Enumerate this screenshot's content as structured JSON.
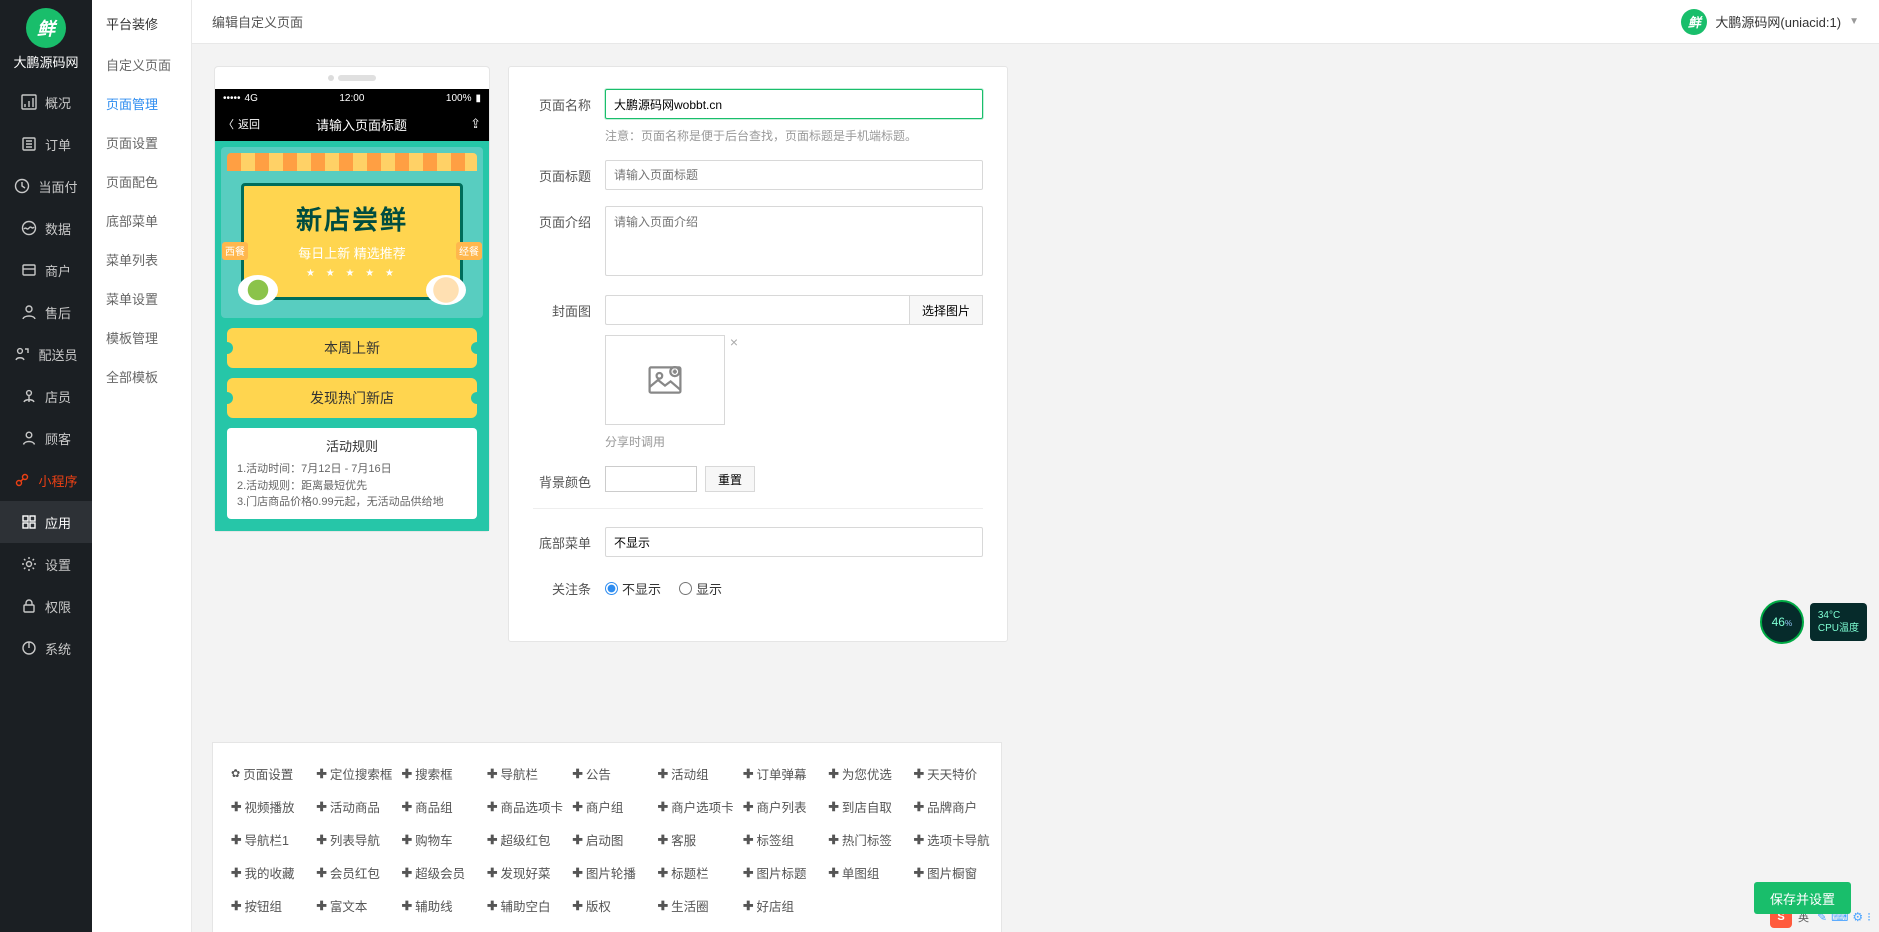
{
  "brand": {
    "name": "大鹏源码网",
    "logo_glyph": "鲜"
  },
  "sidebar_main": [
    {
      "key": "overview",
      "label": "概况",
      "icon": "dash"
    },
    {
      "key": "order",
      "label": "订单",
      "icon": "list"
    },
    {
      "key": "pay",
      "label": "当面付",
      "icon": "clock"
    },
    {
      "key": "data",
      "label": "数据",
      "icon": "wave"
    },
    {
      "key": "merchant",
      "label": "商户",
      "icon": "block"
    },
    {
      "key": "after",
      "label": "售后",
      "icon": "person"
    },
    {
      "key": "delivery",
      "label": "配送员",
      "icon": "rider"
    },
    {
      "key": "staff",
      "label": "店员",
      "icon": "staff"
    },
    {
      "key": "customer",
      "label": "顾客",
      "icon": "cust"
    },
    {
      "key": "miniapp",
      "label": "小程序",
      "icon": "link",
      "active": true
    },
    {
      "key": "apps",
      "label": "应用",
      "icon": "grid",
      "app": true
    },
    {
      "key": "settings",
      "label": "设置",
      "icon": "gear"
    },
    {
      "key": "auth",
      "label": "权限",
      "icon": "lock"
    },
    {
      "key": "system",
      "label": "系统",
      "icon": "power"
    }
  ],
  "sidebar_sub": {
    "title": "平台装修",
    "items": [
      {
        "label": "自定义页面"
      },
      {
        "label": "页面管理",
        "active": true
      },
      {
        "label": "页面设置"
      },
      {
        "label": "页面配色"
      },
      {
        "label": "底部菜单"
      },
      {
        "label": "菜单列表"
      },
      {
        "label": "菜单设置"
      },
      {
        "label": "模板管理"
      },
      {
        "label": "全部模板"
      }
    ]
  },
  "topbar": {
    "breadcrumb": "编辑自定义页面",
    "account": "大鹏源码网(uniacid:1)"
  },
  "phone": {
    "carrier": "4G",
    "time": "12:00",
    "battery": "100%",
    "back": "返回",
    "title": "请输入页面标题",
    "hero_title": "新店尝鲜",
    "hero_sub": "每日上新 精选推荐",
    "tag_left": "西餐",
    "tag_right": "经餐",
    "pill1": "本周上新",
    "pill2": "发现热门新店",
    "rules_title": "活动规则",
    "rules_body": "1.活动时间：7月12日 - 7月16日\n2.活动规则：距离最短优先\n3.门店商品价格0.99元起，无活动品供给地"
  },
  "form": {
    "name_label": "页面名称",
    "name_value": "大鹏源码网wobbt.cn",
    "name_hint": "注意：页面名称是便于后台查找，页面标题是手机端标题。",
    "title_label": "页面标题",
    "title_placeholder": "请输入页面标题",
    "intro_label": "页面介绍",
    "intro_placeholder": "请输入页面介绍",
    "cover_label": "封面图",
    "cover_pick": "选择图片",
    "cover_hint": "分享时调用",
    "bg_label": "背景颜色",
    "bg_reset": "重置",
    "bottom_label": "底部菜单",
    "bottom_value": "不显示",
    "follow_label": "关注条",
    "follow_opt_hide": "不显示",
    "follow_opt_show": "显示"
  },
  "palette": [
    "页面设置",
    "定位搜索框",
    "搜索框",
    "导航栏",
    "公告",
    "活动组",
    "订单弹幕",
    "为您优选",
    "天天特价",
    "视频播放",
    "活动商品",
    "商品组",
    "商品选项卡",
    "商户组",
    "商户选项卡",
    "商户列表",
    "到店自取",
    "品牌商户",
    "导航栏1",
    "列表导航",
    "购物车",
    "超级红包",
    "启动图",
    "客服",
    "标签组",
    "热门标签",
    "选项卡导航",
    "我的收藏",
    "会员红包",
    "超级会员",
    "发现好菜",
    "图片轮播",
    "标题栏",
    "图片标题",
    "单图组",
    "图片橱窗",
    "按钮组",
    "富文本",
    "辅助线",
    "辅助空白",
    "版权",
    "生活圈",
    "好店组"
  ],
  "palette_gear_index": 0,
  "save_label": "保存并设置",
  "gauge": {
    "pct": "46",
    "unit": "%",
    "temp": "34°C",
    "temp_label": "CPU温度"
  },
  "taskbar": {
    "ime": "S",
    "lang": "英"
  }
}
